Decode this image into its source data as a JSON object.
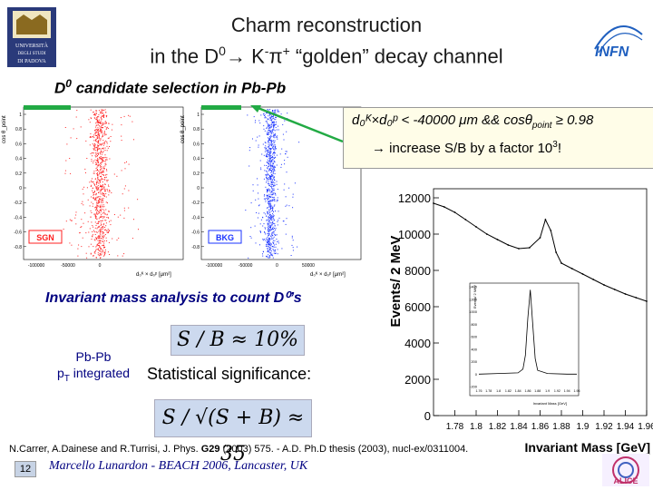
{
  "title": {
    "line1": "Charm reconstruction",
    "line2_prefix": "in the D",
    "line2_zero": "0",
    "line2_arrow": "→",
    "line2_k": " K",
    "line2_minus": "-",
    "line2_pi": "π",
    "line2_plus": "+",
    "line2_suffix": " “golden” decay channel"
  },
  "subtitle": {
    "main": "D",
    "sup": "0",
    "rest": " candidate selection in Pb-Pb"
  },
  "criteria": {
    "line1": "d₀ᴷ×d₀ᵖ < -40000 μm && cosθ",
    "line1_sub": "point",
    "line1_end": " ≥ 0.98",
    "line2_prefix": "→ increase S/B by a factor 10",
    "line2_sup": "3",
    "line2_suffix": "!"
  },
  "scatter_plots": {
    "signal_label": "SGN",
    "background_label": "BKG",
    "y_axis_label": "cos θ_point",
    "x_axis_label": "d₀ᴷ × d₀ᵖ [μm²]",
    "signal_x_ticks": [
      "-100000",
      "-50000",
      "0"
    ],
    "background_x_ticks": [
      "-100000",
      "-50000",
      "0",
      "50000"
    ],
    "y_ticks": [
      "1",
      "0.8",
      "0.6",
      "0.4",
      "0.2",
      "0",
      "-0.2",
      "-0.4",
      "-0.6",
      "-0.8"
    ]
  },
  "invariant_mass": {
    "heading": "Invariant mass analysis to count D⁰’s",
    "pbpb_line1": "Pb-Pb",
    "pbpb_line2_p": "p",
    "pbpb_line2_t": "T",
    "pbpb_line2_rest": " integrated",
    "sb_equation": "S / B ≈ 10%",
    "statistical_significance": "Statistical significance:",
    "sig_equation": "S / √(S + B) ≈ 35"
  },
  "chart_data": {
    "type": "line",
    "title": "",
    "xlabel": "Invariant Mass [GeV]",
    "ylabel": "Events/ 2 MeV",
    "xlim": [
      1.76,
      1.96
    ],
    "ylim": [
      0,
      12500
    ],
    "x_ticks": [
      "1.78",
      "1.8",
      "1.82",
      "1.84",
      "1.86",
      "1.88",
      "1.9",
      "1.92",
      "1.94",
      "1.96"
    ],
    "y_ticks": [
      "0",
      "2000",
      "4000",
      "6000",
      "8000",
      "10000",
      "12000"
    ],
    "series": [
      {
        "name": "signal + background",
        "x": [
          1.76,
          1.77,
          1.78,
          1.79,
          1.8,
          1.81,
          1.82,
          1.83,
          1.84,
          1.85,
          1.86,
          1.865,
          1.87,
          1.875,
          1.88,
          1.89,
          1.9,
          1.91,
          1.92,
          1.93,
          1.94,
          1.95,
          1.96
        ],
        "values": [
          11700,
          11500,
          11200,
          10800,
          10400,
          10000,
          9700,
          9400,
          9200,
          9250,
          9800,
          10800,
          10200,
          9000,
          8400,
          8100,
          7800,
          7500,
          7200,
          6950,
          6700,
          6500,
          6300
        ]
      }
    ],
    "inset": {
      "xlabel": "Invariant Mass [GeV]",
      "ylabel": "Events/ 2 MeV",
      "x_ticks": [
        "1.76",
        "1.78",
        "1.8",
        "1.82",
        "1.84",
        "1.86",
        "1.88",
        "1.9",
        "1.92",
        "1.94",
        "1.96"
      ],
      "y_ticks": [
        "-200",
        "0",
        "200",
        "400",
        "600",
        "800",
        "1000",
        "1200",
        "1400"
      ],
      "x": [
        1.76,
        1.8,
        1.84,
        1.85,
        1.855,
        1.86,
        1.865,
        1.87,
        1.875,
        1.88,
        1.9,
        1.94,
        1.96
      ],
      "values": [
        0,
        10,
        20,
        80,
        300,
        900,
        1350,
        800,
        250,
        60,
        10,
        0,
        0
      ]
    }
  },
  "footer": {
    "reference_prefix": "N.Carrer, A.Dainese and R.Turrisi, J. Phys. ",
    "reference_vol": "G29",
    "reference_suffix": " (2003) 575. - A.D. Ph.D thesis (2003), nucl-ex/0311004.",
    "slide_number": "12",
    "author": "Marcello Lunardon - BEACH 2006, Lancaster, UK"
  },
  "logos": {
    "left": "UNIVERSITÀ DEGLI STUDI DI PADOVA",
    "right": "INFN",
    "bottom_right": "ALICE"
  },
  "colors": {
    "signal": "#ff2020",
    "background": "#1a33ff",
    "accent_navy": "#000080"
  }
}
